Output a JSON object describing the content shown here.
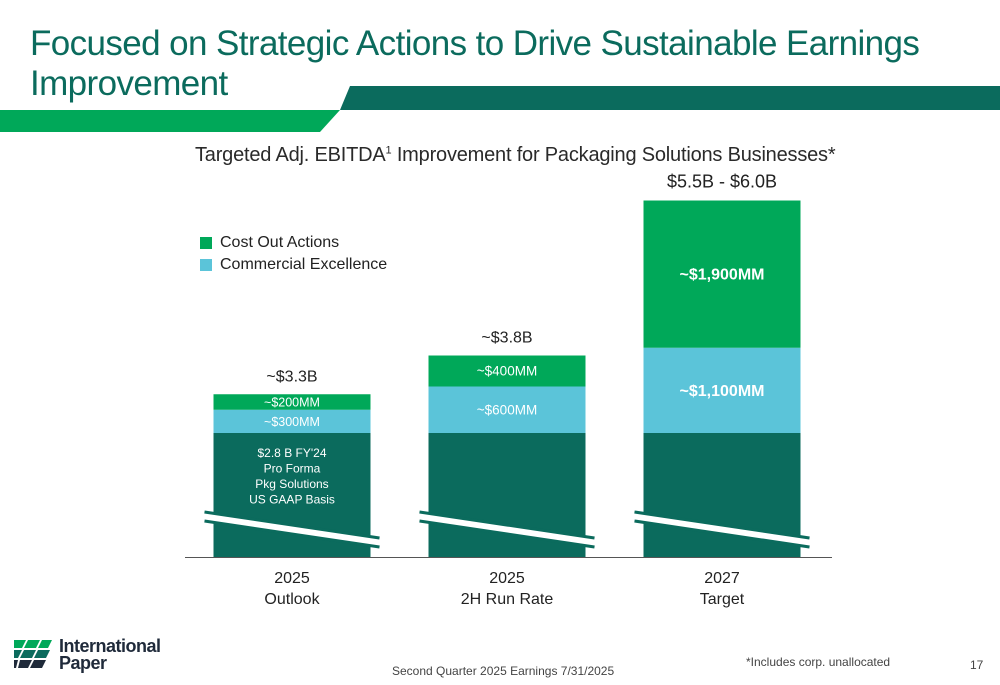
{
  "slide": {
    "title": "Focused on Strategic Actions to Drive Sustainable Earnings Improvement",
    "subtitle_text": "Targeted Adj. EBITDA",
    "subtitle_sup": "1",
    "subtitle_suffix": " Improvement for Packaging Solutions Businesses*",
    "footnote": "*Includes corp. unallocated",
    "footer_center": "Second Quarter 2025 Earnings 7/31/2025",
    "page_number": "17",
    "logo_line1": "International",
    "logo_line2": "Paper"
  },
  "colors": {
    "title": "#0b6b5d",
    "base": "#0b6b5d",
    "commercial": "#5bc4d9",
    "cost_out": "#00a859",
    "banner_light": "#00a859",
    "banner_dark": "#0b6b5d"
  },
  "legend": [
    {
      "name": "Cost Out Actions",
      "color": "#00a859"
    },
    {
      "name": "Commercial Excellence",
      "color": "#5bc4d9"
    }
  ],
  "chart_data": {
    "type": "bar",
    "stacked": true,
    "broken_axis": true,
    "categories": [
      "2025\nOutlook",
      "2025\n2H Run Rate",
      "2027\nTarget"
    ],
    "category_lines": [
      [
        "2025",
        "Outlook"
      ],
      [
        "2025",
        "2H Run Rate"
      ],
      [
        "2027",
        "Target"
      ]
    ],
    "base_label_lines": [
      "$2.8 B FY'24",
      "Pro Forma",
      "Pkg Solutions",
      "US GAAP Basis"
    ],
    "series": [
      {
        "key": "base",
        "values": [
          2800,
          2800,
          2800
        ],
        "labels": [
          "",
          "",
          ""
        ]
      },
      {
        "name": "Commercial Excellence",
        "key": "commercial",
        "values": [
          300,
          600,
          1100
        ],
        "labels": [
          "~$300MM",
          "~$600MM",
          "~$1,100MM"
        ]
      },
      {
        "name": "Cost Out Actions",
        "key": "cost_out",
        "values": [
          200,
          400,
          1900
        ],
        "labels": [
          "~$200MM",
          "~$400MM",
          "~$1,900MM"
        ]
      }
    ],
    "totals": [
      "~$3.3B",
      "~$3.8B",
      "$5.5B - $6.0B"
    ],
    "legend_position": "top-left",
    "grid": false
  }
}
